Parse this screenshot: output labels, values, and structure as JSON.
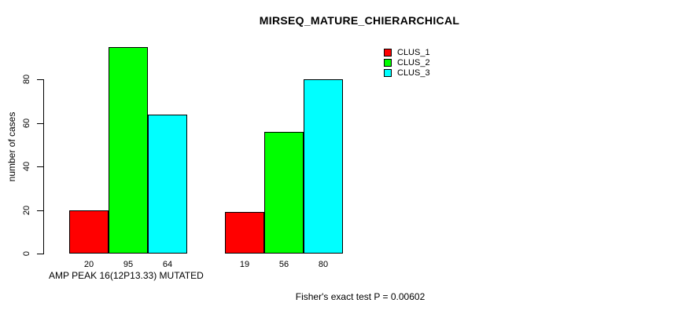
{
  "chart_data": {
    "type": "bar",
    "title": "MIRSEQ_MATURE_CHIERARCHICAL",
    "ylabel": "number of cases",
    "xlabel": "AMP PEAK 16(12P13.33) MUTATED",
    "annotation": "Fisher's exact test P = 0.00602",
    "yticks": [
      0,
      20,
      40,
      60,
      80
    ],
    "ylim": [
      0,
      95
    ],
    "grid": false,
    "legend_position": "top-right",
    "bar_value_labels_shown": true,
    "group_count": 2,
    "series": [
      {
        "name": "CLUS_1",
        "color": "#FF0000",
        "values": [
          20,
          19
        ]
      },
      {
        "name": "CLUS_2",
        "color": "#00FF00",
        "values": [
          95,
          56
        ]
      },
      {
        "name": "CLUS_3",
        "color": "#00FFFF",
        "values": [
          64,
          80
        ]
      }
    ],
    "group_value_labels": [
      [
        20,
        95,
        64
      ],
      [
        19,
        56,
        80
      ]
    ]
  },
  "colors": {
    "background": "#FFFFFF",
    "axis": "#000000",
    "text": "#000000"
  }
}
